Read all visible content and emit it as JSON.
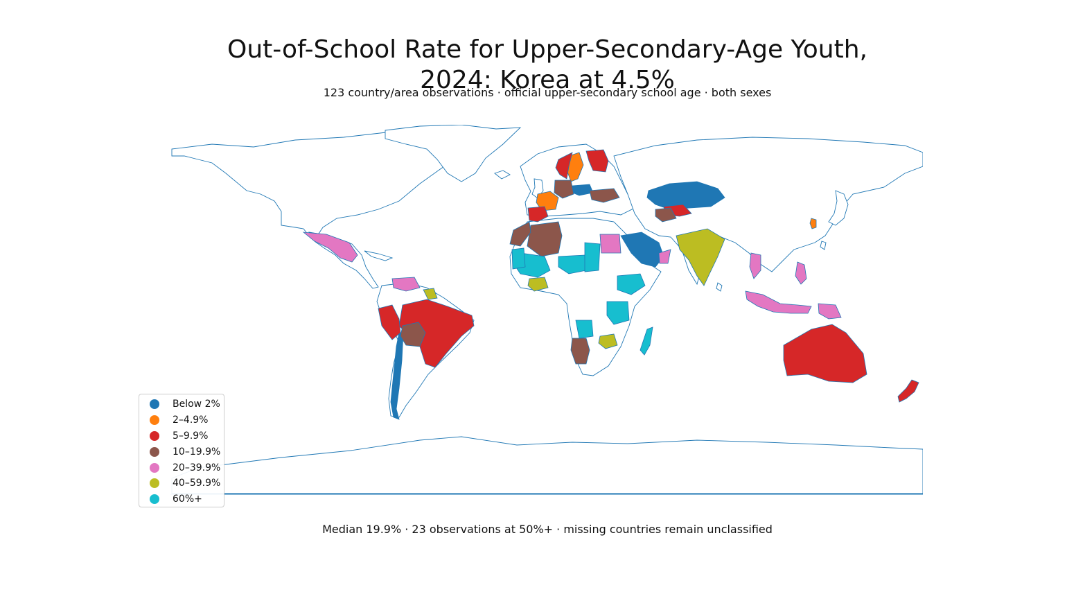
{
  "title_line1": "Out-of-School Rate for Upper-Secondary-Age Youth,",
  "title_line2": "2024: Korea at 4.5%",
  "subtitle": "123 country/area observations · official upper-secondary school age · both sexes",
  "footnote": "Median 19.9% · 23 observations at 50%+ · missing countries remain unclassified",
  "legend": [
    {
      "label": "Below 2%",
      "color": "#1f77b4"
    },
    {
      "label": "2–4.9%",
      "color": "#ff7f0e"
    },
    {
      "label": "5–9.9%",
      "color": "#d62728"
    },
    {
      "label": "10–19.9%",
      "color": "#8c564b"
    },
    {
      "label": "20–39.9%",
      "color": "#e377c2"
    },
    {
      "label": "40–59.9%",
      "color": "#bcbd22"
    },
    {
      "label": "60%+",
      "color": "#17becf"
    }
  ],
  "colors": {
    "outline": "#1f77b4",
    "unclassified_fill": "#ffffff"
  },
  "chart_data": {
    "type": "choropleth",
    "title": "Out-of-School Rate for Upper-Secondary-Age Youth, 2024: Korea at 4.5%",
    "highlight": {
      "country": "Korea",
      "value": 4.5,
      "unit": "%"
    },
    "observations": 123,
    "median": 19.9,
    "count_50_plus": 23,
    "bins": [
      "Below 2%",
      "2–4.9%",
      "5–9.9%",
      "10–19.9%",
      "20–39.9%",
      "40–59.9%",
      "60%+"
    ],
    "countries": [
      {
        "name": "Korea",
        "bin": "2–4.9%"
      },
      {
        "name": "Kazakhstan",
        "bin": "Below 2%"
      },
      {
        "name": "Saudi Arabia",
        "bin": "Below 2%"
      },
      {
        "name": "Chile",
        "bin": "Below 2%"
      },
      {
        "name": "Poland",
        "bin": "Below 2%"
      },
      {
        "name": "France",
        "bin": "2–4.9%"
      },
      {
        "name": "Sweden",
        "bin": "2–4.9%"
      },
      {
        "name": "Brazil",
        "bin": "5–9.9%"
      },
      {
        "name": "Australia",
        "bin": "5–9.9%"
      },
      {
        "name": "New Zealand",
        "bin": "5–9.9%"
      },
      {
        "name": "Spain",
        "bin": "5–9.9%"
      },
      {
        "name": "Norway",
        "bin": "5–9.9%"
      },
      {
        "name": "Finland",
        "bin": "5–9.9%"
      },
      {
        "name": "Peru",
        "bin": "5–9.9%"
      },
      {
        "name": "Uzbekistan",
        "bin": "5–9.9%"
      },
      {
        "name": "Algeria",
        "bin": "10–19.9%"
      },
      {
        "name": "Morocco",
        "bin": "10–19.9%"
      },
      {
        "name": "Bolivia",
        "bin": "10–19.9%"
      },
      {
        "name": "Namibia",
        "bin": "10–19.9%"
      },
      {
        "name": "Germany",
        "bin": "10–19.9%"
      },
      {
        "name": "Ukraine",
        "bin": "10–19.9%"
      },
      {
        "name": "Turkmenistan",
        "bin": "10–19.9%"
      },
      {
        "name": "Mexico",
        "bin": "20–39.9%"
      },
      {
        "name": "Egypt",
        "bin": "20–39.9%"
      },
      {
        "name": "Venezuela",
        "bin": "20–39.9%"
      },
      {
        "name": "Indonesia",
        "bin": "20–39.9%"
      },
      {
        "name": "Philippines",
        "bin": "20–39.9%"
      },
      {
        "name": "Papua New Guinea",
        "bin": "20–39.9%"
      },
      {
        "name": "Oman",
        "bin": "20–39.9%"
      },
      {
        "name": "Thailand",
        "bin": "20–39.9%"
      },
      {
        "name": "India",
        "bin": "40–59.9%"
      },
      {
        "name": "Zimbabwe",
        "bin": "40–59.9%"
      },
      {
        "name": "Cote d'Ivoire",
        "bin": "40–59.9%"
      },
      {
        "name": "Guyana",
        "bin": "40–59.9%"
      },
      {
        "name": "Mali",
        "bin": "60%+"
      },
      {
        "name": "Niger",
        "bin": "60%+"
      },
      {
        "name": "Chad",
        "bin": "60%+"
      },
      {
        "name": "Ethiopia",
        "bin": "60%+"
      },
      {
        "name": "Tanzania",
        "bin": "60%+"
      },
      {
        "name": "Madagascar",
        "bin": "60%+"
      },
      {
        "name": "Mauritania",
        "bin": "60%+"
      },
      {
        "name": "Angola",
        "bin": "60%+"
      }
    ]
  }
}
